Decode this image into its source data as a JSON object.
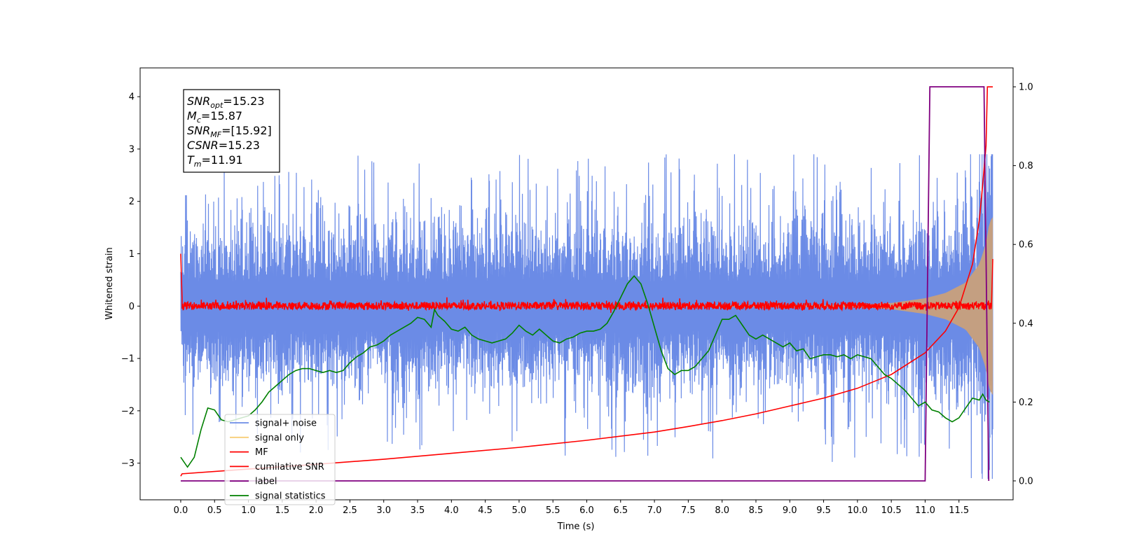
{
  "chart_data": {
    "type": "line",
    "xlabel": "Time (s)",
    "ylabel": "Whitened strain",
    "xlim": [
      -0.6,
      12.3
    ],
    "ylim": [
      -3.7,
      4.55
    ],
    "ylim_right": [
      -0.048,
      1.048
    ],
    "x_ticks": [
      0.0,
      0.5,
      1.0,
      1.5,
      2.0,
      2.5,
      3.0,
      3.5,
      4.0,
      4.5,
      5.0,
      5.5,
      6.0,
      6.5,
      7.0,
      7.5,
      8.0,
      8.5,
      9.0,
      9.5,
      10.0,
      10.5,
      11.0,
      11.5
    ],
    "x_tick_labels": [
      "0.0",
      "0.5",
      "1.0",
      "1.5",
      "2.0",
      "2.5",
      "3.0",
      "3.5",
      "4.0",
      "4.5",
      "5.0",
      "5.5",
      "6.0",
      "6.5",
      "7.0",
      "7.5",
      "8.0",
      "8.5",
      "9.0",
      "9.5",
      "10.0",
      "10.5",
      "11.0",
      "11.5"
    ],
    "y_ticks": [
      -3,
      -2,
      -1,
      0,
      1,
      2,
      3,
      4
    ],
    "y_tick_labels": [
      "−3",
      "−2",
      "−1",
      "0",
      "1",
      "2",
      "3",
      "4"
    ],
    "y_ticks_right": [
      0.0,
      0.2,
      0.4,
      0.6,
      0.8,
      1.0
    ],
    "y_tick_labels_right": [
      "0.0",
      "0.2",
      "0.4",
      "0.6",
      "0.8",
      "1.0"
    ],
    "grid": false,
    "legend": {
      "position": "lower-left",
      "entries": [
        {
          "name": "signal+ noise",
          "color": "#6b8be6"
        },
        {
          "name": "signal only",
          "color": "#f7ce76"
        },
        {
          "name": "MF",
          "color": "#ff0000"
        },
        {
          "name": "cumilative SNR",
          "color": "#ff0000"
        },
        {
          "name": "label",
          "color": "#800080"
        },
        {
          "name": "signal statistics",
          "color": "#008000"
        }
      ]
    },
    "annotation": [
      {
        "var": "SNR",
        "sub": "opt",
        "value": "=15.23"
      },
      {
        "var": "M",
        "sub": "c",
        "value": "=15.87"
      },
      {
        "var": "SNR",
        "sub": "MF",
        "value": "=[15.92]"
      },
      {
        "var": "CSNR",
        "sub": "",
        "value": "=15.23"
      },
      {
        "var": "T",
        "sub": "m",
        "value": "=11.91"
      }
    ],
    "series": [
      {
        "name": "signal+ noise",
        "axis": "left",
        "color": "#6b8be6",
        "t_range": [
          0.0,
          12.0
        ],
        "envelope": [
          [
            0.0,
            1.3
          ],
          [
            11.0,
            1.35
          ],
          [
            11.7,
            1.7
          ],
          [
            12.0,
            2.9
          ]
        ],
        "peak_range": [
          -3.3,
          2.9
        ]
      },
      {
        "name": "signal only",
        "axis": "left",
        "color": "#f7ce76",
        "fill_color": "#c9a07b",
        "t_range": [
          0.0,
          12.0
        ],
        "envelope": [
          [
            0.0,
            0.0
          ],
          [
            10.0,
            0.02
          ],
          [
            10.5,
            0.06
          ],
          [
            11.0,
            0.15
          ],
          [
            11.3,
            0.25
          ],
          [
            11.6,
            0.45
          ],
          [
            11.8,
            0.8
          ],
          [
            11.9,
            1.2
          ],
          [
            11.95,
            1.6
          ],
          [
            12.0,
            1.7
          ]
        ]
      },
      {
        "name": "MF",
        "axis": "left",
        "color": "#ff0000",
        "start": [
          0.0,
          1.0
        ],
        "band": [
          -0.07,
          0.08
        ],
        "end": [
          12.0,
          0.9
        ]
      },
      {
        "name": "cumilative SNR",
        "axis": "right",
        "x": [
          0.0,
          0.02,
          1.0,
          2.0,
          3.0,
          4.0,
          5.0,
          6.0,
          7.0,
          7.5,
          8.0,
          8.5,
          9.0,
          9.5,
          10.0,
          10.5,
          11.0,
          11.3,
          11.5,
          11.7,
          11.8,
          11.85,
          11.9,
          11.92,
          11.95,
          12.0
        ],
        "y": [
          0.012,
          0.018,
          0.03,
          0.042,
          0.055,
          0.07,
          0.085,
          0.103,
          0.124,
          0.138,
          0.153,
          0.17,
          0.19,
          0.21,
          0.235,
          0.27,
          0.325,
          0.38,
          0.44,
          0.55,
          0.66,
          0.75,
          0.85,
          1.0,
          1.0,
          1.0
        ]
      },
      {
        "name": "label",
        "axis": "right",
        "color": "#800080",
        "x": [
          0.0,
          11.0,
          11.07,
          11.87,
          11.94
        ],
        "y": [
          0.0,
          0.0,
          1.0,
          1.0,
          0.0
        ]
      },
      {
        "name": "signal statistics",
        "axis": "right",
        "color": "#008000",
        "x": [
          0.0,
          0.1,
          0.2,
          0.3,
          0.4,
          0.5,
          0.6,
          0.7,
          0.8,
          0.9,
          1.0,
          1.1,
          1.2,
          1.3,
          1.4,
          1.5,
          1.6,
          1.7,
          1.8,
          1.9,
          2.0,
          2.1,
          2.2,
          2.3,
          2.4,
          2.5,
          2.6,
          2.7,
          2.8,
          2.9,
          3.0,
          3.1,
          3.2,
          3.3,
          3.4,
          3.5,
          3.6,
          3.7,
          3.75,
          3.8,
          3.9,
          4.0,
          4.1,
          4.2,
          4.3,
          4.4,
          4.5,
          4.6,
          4.7,
          4.8,
          4.9,
          5.0,
          5.1,
          5.2,
          5.3,
          5.4,
          5.5,
          5.6,
          5.7,
          5.8,
          5.9,
          6.0,
          6.1,
          6.2,
          6.3,
          6.4,
          6.5,
          6.6,
          6.7,
          6.8,
          6.9,
          7.0,
          7.1,
          7.2,
          7.3,
          7.4,
          7.5,
          7.6,
          7.7,
          7.8,
          7.9,
          8.0,
          8.1,
          8.2,
          8.3,
          8.4,
          8.5,
          8.6,
          8.7,
          8.8,
          8.9,
          9.0,
          9.1,
          9.2,
          9.3,
          9.4,
          9.5,
          9.6,
          9.7,
          9.8,
          9.9,
          10.0,
          10.1,
          10.2,
          10.3,
          10.4,
          10.5,
          10.6,
          10.7,
          10.8,
          10.9,
          11.0,
          11.1,
          11.2,
          11.3,
          11.4,
          11.5,
          11.6,
          11.7,
          11.8,
          11.85,
          11.9,
          11.95
        ],
        "y": [
          0.06,
          0.035,
          0.06,
          0.13,
          0.185,
          0.18,
          0.155,
          0.15,
          0.155,
          0.16,
          0.165,
          0.18,
          0.2,
          0.225,
          0.24,
          0.255,
          0.27,
          0.28,
          0.285,
          0.285,
          0.28,
          0.275,
          0.28,
          0.275,
          0.28,
          0.3,
          0.315,
          0.325,
          0.34,
          0.345,
          0.355,
          0.37,
          0.38,
          0.39,
          0.4,
          0.415,
          0.41,
          0.39,
          0.435,
          0.42,
          0.405,
          0.385,
          0.38,
          0.39,
          0.37,
          0.36,
          0.355,
          0.35,
          0.355,
          0.36,
          0.375,
          0.395,
          0.38,
          0.37,
          0.385,
          0.37,
          0.355,
          0.35,
          0.36,
          0.365,
          0.375,
          0.38,
          0.38,
          0.385,
          0.4,
          0.43,
          0.465,
          0.5,
          0.52,
          0.5,
          0.45,
          0.39,
          0.33,
          0.285,
          0.27,
          0.28,
          0.28,
          0.29,
          0.31,
          0.33,
          0.37,
          0.41,
          0.41,
          0.42,
          0.395,
          0.37,
          0.36,
          0.37,
          0.36,
          0.35,
          0.34,
          0.35,
          0.33,
          0.335,
          0.31,
          0.315,
          0.32,
          0.32,
          0.315,
          0.32,
          0.31,
          0.32,
          0.315,
          0.31,
          0.29,
          0.27,
          0.26,
          0.245,
          0.23,
          0.21,
          0.19,
          0.2,
          0.18,
          0.175,
          0.16,
          0.15,
          0.16,
          0.185,
          0.21,
          0.205,
          0.22,
          0.205,
          0.2
        ]
      }
    ]
  }
}
